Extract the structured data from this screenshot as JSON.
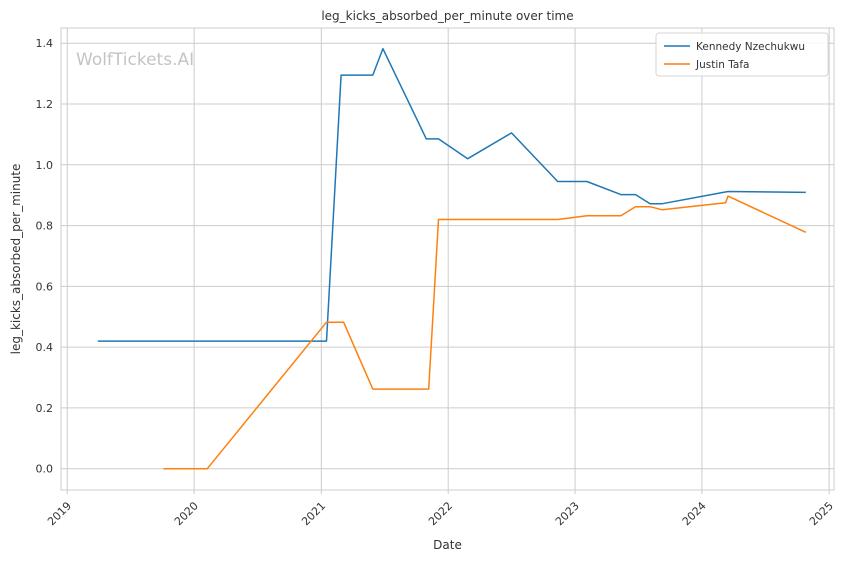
{
  "watermark": "WolfTickets.AI",
  "chart_data": {
    "type": "line",
    "title": "leg_kicks_absorbed_per_minute over time",
    "xlabel": "Date",
    "ylabel": "leg_kicks_absorbed_per_minute",
    "xlim": [
      "2018-12-14",
      "2025-01-15"
    ],
    "ylim": [
      -0.07,
      1.45
    ],
    "x_ticks": [
      "2019",
      "2020",
      "2021",
      "2022",
      "2023",
      "2024",
      "2025"
    ],
    "y_ticks": [
      "0.0",
      "0.2",
      "0.4",
      "0.6",
      "0.8",
      "1.0",
      "1.2",
      "1.4"
    ],
    "grid": true,
    "legend_position": "top-right",
    "series": [
      {
        "name": "Kennedy Nzechukwu",
        "color": "#1f77b4",
        "points": [
          [
            "2019-03-30",
            0.42
          ],
          [
            "2021-01-16",
            0.42
          ],
          [
            "2021-02-27",
            1.295
          ],
          [
            "2021-05-29",
            1.295
          ],
          [
            "2021-06-27",
            1.382
          ],
          [
            "2021-10-30",
            1.085
          ],
          [
            "2021-12-04",
            1.085
          ],
          [
            "2022-02-26",
            1.02
          ],
          [
            "2022-07-02",
            1.105
          ],
          [
            "2022-11-12",
            0.945
          ],
          [
            "2023-02-04",
            0.945
          ],
          [
            "2023-05-13",
            0.902
          ],
          [
            "2023-06-24",
            0.902
          ],
          [
            "2023-08-05",
            0.872
          ],
          [
            "2023-09-09",
            0.872
          ],
          [
            "2024-03-16",
            0.912
          ],
          [
            "2024-10-26",
            0.909
          ]
        ]
      },
      {
        "name": "Justin Tafa",
        "color": "#ff7f0e",
        "points": [
          [
            "2019-10-05",
            0.0
          ],
          [
            "2020-02-08",
            0.0
          ],
          [
            "2021-01-16",
            0.482
          ],
          [
            "2021-03-06",
            0.482
          ],
          [
            "2021-05-29",
            0.262
          ],
          [
            "2021-11-06",
            0.262
          ],
          [
            "2021-12-04",
            0.82
          ],
          [
            "2022-11-12",
            0.82
          ],
          [
            "2023-02-04",
            0.832
          ],
          [
            "2023-05-13",
            0.832
          ],
          [
            "2023-06-24",
            0.862
          ],
          [
            "2023-08-05",
            0.862
          ],
          [
            "2023-09-09",
            0.852
          ],
          [
            "2024-03-09",
            0.875
          ],
          [
            "2024-03-16",
            0.897
          ],
          [
            "2024-10-26",
            0.778
          ]
        ]
      }
    ]
  }
}
